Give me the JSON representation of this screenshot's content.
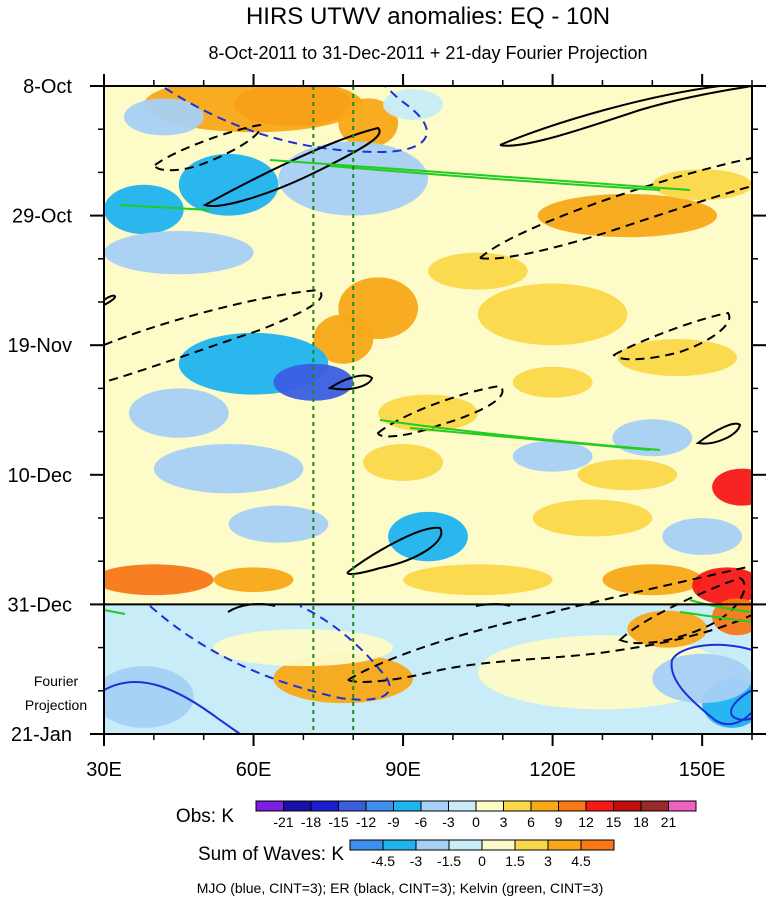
{
  "chart_data": {
    "type": "heatmap",
    "title": "HIRS UTWV anomalies: EQ - 10N",
    "subtitle": "8-Oct-2011 to 31-Dec-2011 + 21-day Fourier Projection",
    "x_axis": {
      "range": [
        30,
        160
      ],
      "ticks": [
        {
          "value": 30,
          "label": "30E"
        },
        {
          "value": 60,
          "label": "60E"
        },
        {
          "value": 90,
          "label": "90E"
        },
        {
          "value": 120,
          "label": "120E"
        },
        {
          "value": 150,
          "label": "150E"
        }
      ],
      "minor_step": 10
    },
    "y_axis": {
      "range_days": [
        0,
        105
      ],
      "ticks": [
        {
          "day": 0,
          "label": "8-Oct"
        },
        {
          "day": 21,
          "label": "29-Oct"
        },
        {
          "day": 42,
          "label": "19-Nov"
        },
        {
          "day": 63,
          "label": "10-Dec"
        },
        {
          "day": 84,
          "label": "31-Dec"
        },
        {
          "day": 105,
          "label": "21-Jan"
        }
      ],
      "minor_step": 7
    },
    "forecast_start_day": 84,
    "forecast_label": [
      "Fourier",
      "Projection"
    ],
    "reference_lines_lon": [
      72,
      80
    ],
    "obs_colorbar": {
      "label": "Obs: K",
      "levels": [
        "-21",
        "-18",
        "-15",
        "-12",
        "-9",
        "-6",
        "-3",
        "0",
        "3",
        "6",
        "9",
        "12",
        "15",
        "18",
        "21"
      ],
      "colors": [
        "#7d1fe0",
        "#1a0fa8",
        "#1a1fd0",
        "#3a5ee0",
        "#3d8ff0",
        "#1fb3f0",
        "#a6d0f5",
        "#c8ecf8",
        "#fdfbc8",
        "#fbd84a",
        "#f8a818",
        "#f87818",
        "#f81818",
        "#c00d0d",
        "#9a2a2a",
        "#f060c0"
      ]
    },
    "wave_colorbar": {
      "label": "Sum of Waves: K",
      "levels": [
        "-4.5",
        "-3",
        "-1.5",
        "0",
        "1.5",
        "3",
        "4.5"
      ],
      "colors": [
        "#3d8ff0",
        "#1fb3f0",
        "#a6d0f5",
        "#c8ecf8",
        "#fdfbc8",
        "#fbd84a",
        "#f8a818",
        "#f87818"
      ]
    },
    "legend_text": "MJO (blue, CINT=3); ER (black, CINT=3); Kelvin (green, CINT=3)",
    "contour_colors": {
      "mjo": "#1f2fd8",
      "er": "#000000",
      "kelvin": "#22cc22"
    },
    "anomaly_blobs": [
      {
        "lon": 68,
        "day": 3,
        "rlon": 12,
        "rday": 3.5,
        "value": 14
      },
      {
        "lon": 60,
        "day": 3,
        "rlon": 22,
        "rday": 4.5,
        "value": 7
      },
      {
        "lon": 83,
        "day": 6,
        "rlon": 6,
        "rday": 4,
        "value": 6
      },
      {
        "lon": 92,
        "day": 3,
        "rlon": 6,
        "rday": 2.5,
        "value": -3
      },
      {
        "lon": 42,
        "day": 5,
        "rlon": 8,
        "rday": 3,
        "value": -6
      },
      {
        "lon": 55,
        "day": 16,
        "rlon": 10,
        "rday": 5,
        "value": -8
      },
      {
        "lon": 38,
        "day": 20,
        "rlon": 8,
        "rday": 4,
        "value": -7
      },
      {
        "lon": 80,
        "day": 15,
        "rlon": 15,
        "rday": 6,
        "value": -4
      },
      {
        "lon": 135,
        "day": 21,
        "rlon": 18,
        "rday": 3.5,
        "value": 7
      },
      {
        "lon": 150,
        "day": 16,
        "rlon": 10,
        "rday": 2.5,
        "value": 5
      },
      {
        "lon": 45,
        "day": 27,
        "rlon": 15,
        "rday": 3.5,
        "value": -5
      },
      {
        "lon": 85,
        "day": 36,
        "rlon": 8,
        "rday": 5,
        "value": 8
      },
      {
        "lon": 78,
        "day": 41,
        "rlon": 6,
        "rday": 4,
        "value": 6
      },
      {
        "lon": 120,
        "day": 37,
        "rlon": 15,
        "rday": 5,
        "value": 4
      },
      {
        "lon": 145,
        "day": 44,
        "rlon": 12,
        "rday": 3,
        "value": 4
      },
      {
        "lon": 105,
        "day": 30,
        "rlon": 10,
        "rday": 3,
        "value": 3
      },
      {
        "lon": 60,
        "day": 45,
        "rlon": 15,
        "rday": 5,
        "value": -9
      },
      {
        "lon": 72,
        "day": 48,
        "rlon": 8,
        "rday": 3,
        "value": -15
      },
      {
        "lon": 45,
        "day": 53,
        "rlon": 10,
        "rday": 4,
        "value": -5
      },
      {
        "lon": 95,
        "day": 53,
        "rlon": 10,
        "rday": 3,
        "value": 5
      },
      {
        "lon": 120,
        "day": 48,
        "rlon": 8,
        "rday": 2.5,
        "value": 4
      },
      {
        "lon": 140,
        "day": 57,
        "rlon": 8,
        "rday": 3,
        "value": -4
      },
      {
        "lon": 120,
        "day": 60,
        "rlon": 8,
        "rday": 2.5,
        "value": -4
      },
      {
        "lon": 90,
        "day": 61,
        "rlon": 8,
        "rday": 3,
        "value": 4
      },
      {
        "lon": 135,
        "day": 63,
        "rlon": 10,
        "rday": 2.5,
        "value": 4
      },
      {
        "lon": 158,
        "day": 65,
        "rlon": 6,
        "rday": 3,
        "value": 12
      },
      {
        "lon": 55,
        "day": 62,
        "rlon": 15,
        "rday": 4,
        "value": -4
      },
      {
        "lon": 65,
        "day": 71,
        "rlon": 10,
        "rday": 3,
        "value": -6
      },
      {
        "lon": 95,
        "day": 73,
        "rlon": 8,
        "rday": 4,
        "value": -7
      },
      {
        "lon": 128,
        "day": 70,
        "rlon": 12,
        "rday": 3,
        "value": 5
      },
      {
        "lon": 150,
        "day": 73,
        "rlon": 8,
        "rday": 3,
        "value": -4
      },
      {
        "lon": 40,
        "day": 80,
        "rlon": 12,
        "rday": 2.5,
        "value": 9
      },
      {
        "lon": 60,
        "day": 80,
        "rlon": 8,
        "rday": 2,
        "value": 7
      },
      {
        "lon": 105,
        "day": 80,
        "rlon": 15,
        "rday": 2.5,
        "value": 5
      },
      {
        "lon": 140,
        "day": 80,
        "rlon": 10,
        "rday": 2.5,
        "value": 6
      },
      {
        "lon": 155,
        "day": 81,
        "rlon": 7,
        "rday": 3,
        "value": 14
      }
    ],
    "forecast_blobs": [
      {
        "lon": 78,
        "day": 96,
        "rlon": 14,
        "rday": 4,
        "value": 3.5
      },
      {
        "lon": 70,
        "day": 91,
        "rlon": 18,
        "rday": 3,
        "value": 1.2
      },
      {
        "lon": 130,
        "day": 95,
        "rlon": 25,
        "rday": 6,
        "value": 0.5
      },
      {
        "lon": 143,
        "day": 88,
        "rlon": 8,
        "rday": 3,
        "value": 3.5
      },
      {
        "lon": 157,
        "day": 86,
        "rlon": 5,
        "rday": 3,
        "value": 5.5
      },
      {
        "lon": 38,
        "day": 99,
        "rlon": 10,
        "rday": 5,
        "value": -2
      },
      {
        "lon": 156,
        "day": 100,
        "rlon": 6,
        "rday": 4,
        "value": -3.5
      },
      {
        "lon": 150,
        "day": 96,
        "rlon": 10,
        "rday": 4,
        "value": -1.8
      }
    ]
  }
}
